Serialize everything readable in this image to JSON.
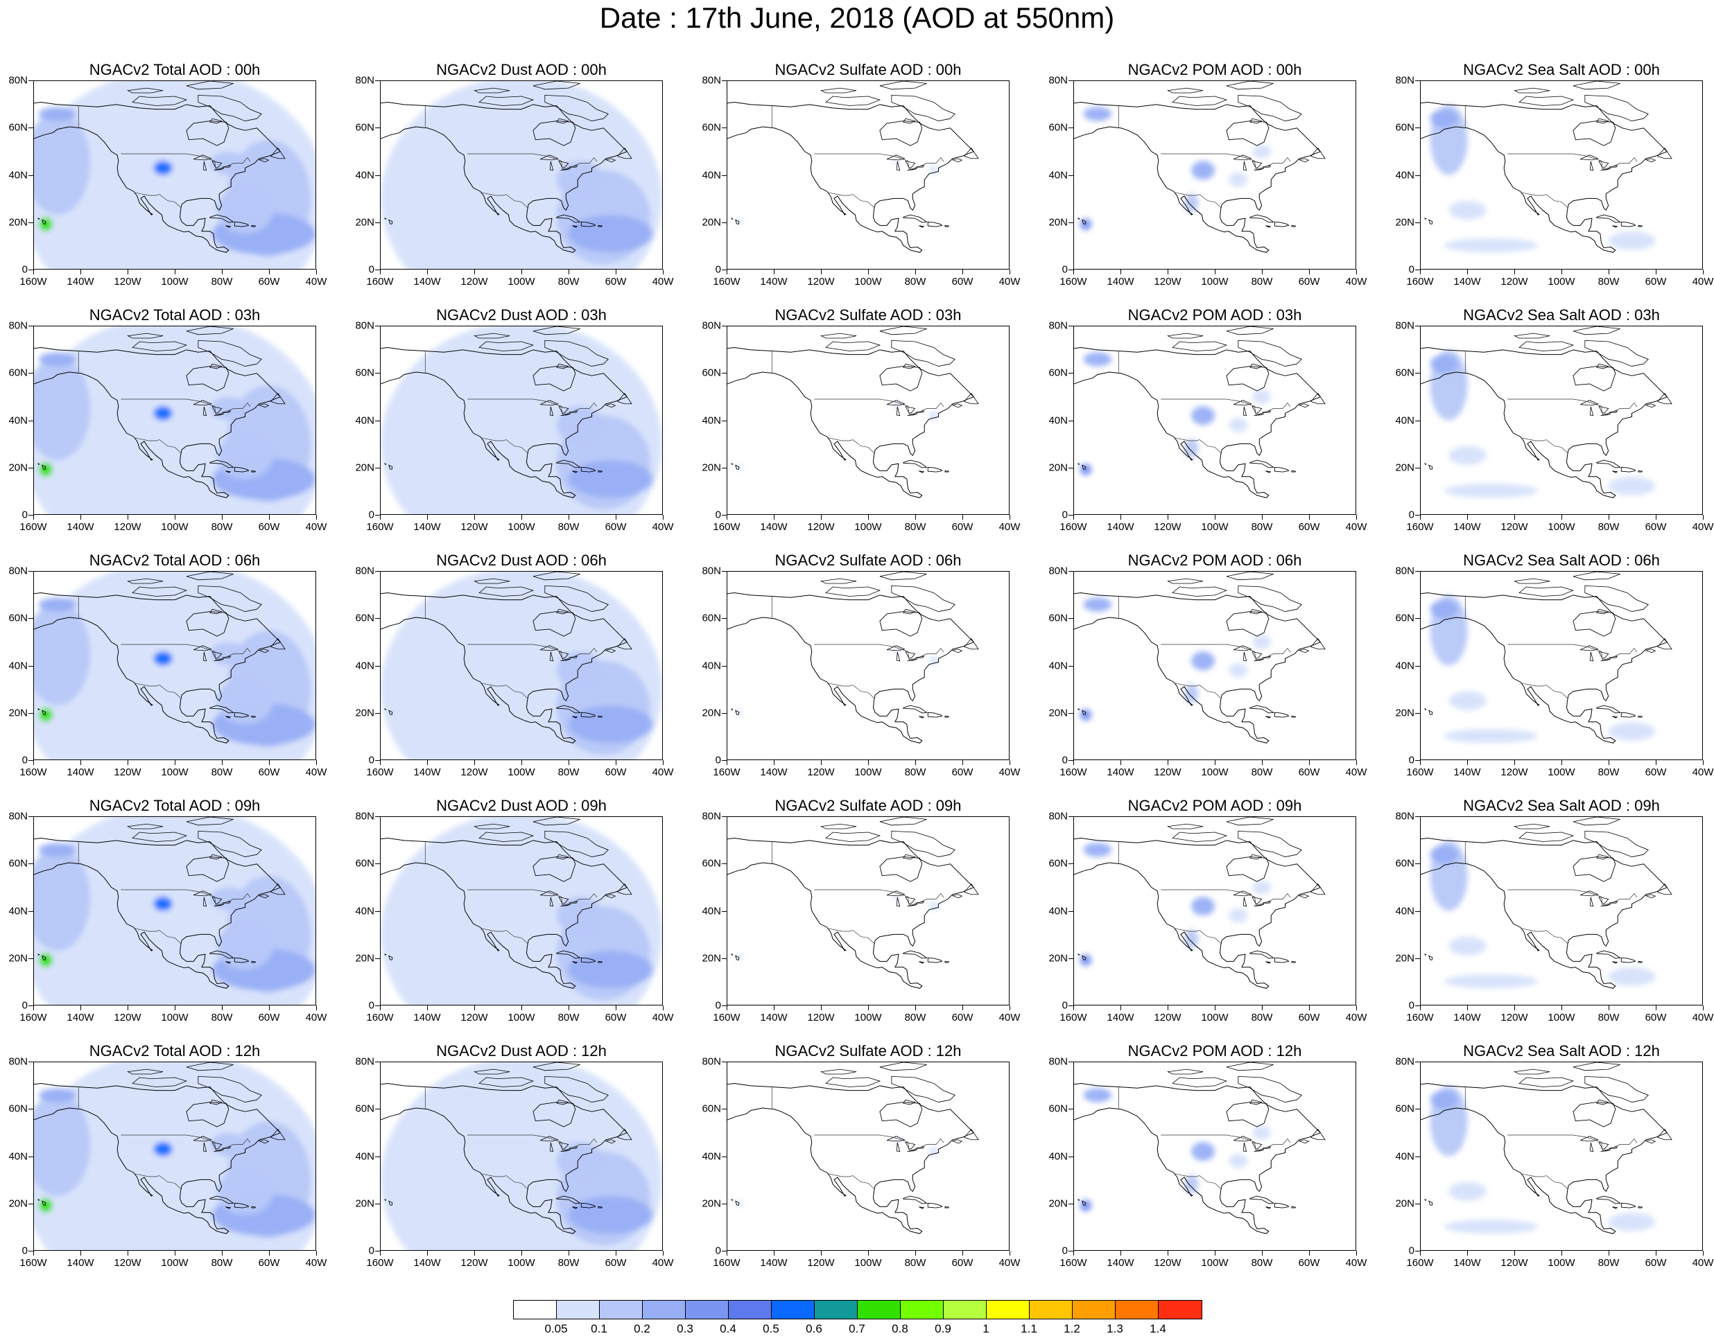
{
  "title": "Date : 17th June, 2018 (AOD at 550nm)",
  "x_ticks": [
    "160W",
    "140W",
    "120W",
    "100W",
    "80W",
    "60W",
    "40W"
  ],
  "y_ticks": [
    "80N",
    "60N",
    "40N",
    "20N",
    "0"
  ],
  "colorbar": {
    "labels": [
      "0.05",
      "0.1",
      "0.2",
      "0.3",
      "0.4",
      "0.5",
      "0.6",
      "0.7",
      "0.8",
      "0.9",
      "1",
      "1.1",
      "1.2",
      "1.3",
      "1.4"
    ],
    "colors": [
      "#ffffff",
      "#d6e2fb",
      "#b7c8f8",
      "#98aff5",
      "#7b95f2",
      "#5d79ee",
      "#0b69ff",
      "#119a99",
      "#32e000",
      "#74ff00",
      "#b5ff3e",
      "#ffff00",
      "#ffc500",
      "#ff9e00",
      "#ff7600",
      "#ff2e10"
    ]
  },
  "panels": [
    [
      "NGACv2 Total AOD : 00h",
      "NGACv2 Dust AOD : 00h",
      "NGACv2 Sulfate AOD : 00h",
      "NGACv2 POM AOD : 00h",
      "NGACv2 Sea Salt AOD : 00h"
    ],
    [
      "NGACv2 Total AOD : 03h",
      "NGACv2 Dust AOD : 03h",
      "NGACv2 Sulfate AOD : 03h",
      "NGACv2 POM AOD : 03h",
      "NGACv2 Sea Salt AOD : 03h"
    ],
    [
      "NGACv2 Total AOD : 06h",
      "NGACv2 Dust AOD : 06h",
      "NGACv2 Sulfate AOD : 06h",
      "NGACv2 POM AOD : 06h",
      "NGACv2 Sea Salt AOD : 06h"
    ],
    [
      "NGACv2 Total AOD : 09h",
      "NGACv2 Dust AOD : 09h",
      "NGACv2 Sulfate AOD : 09h",
      "NGACv2 POM AOD : 09h",
      "NGACv2 Sea Salt  AOD : 09h"
    ],
    [
      "NGACv2 Total AOD  : 12h",
      "NGACv2 Dust AOD : 12h",
      "NGACv2 Sulfate AOD : 12h",
      "NGACv2 POM  AOD : 12h",
      "NGACv2 Sea Salt  AOD : 12h"
    ]
  ],
  "map_types": [
    "total",
    "dust",
    "sulfate",
    "pom",
    "seasalt"
  ]
}
